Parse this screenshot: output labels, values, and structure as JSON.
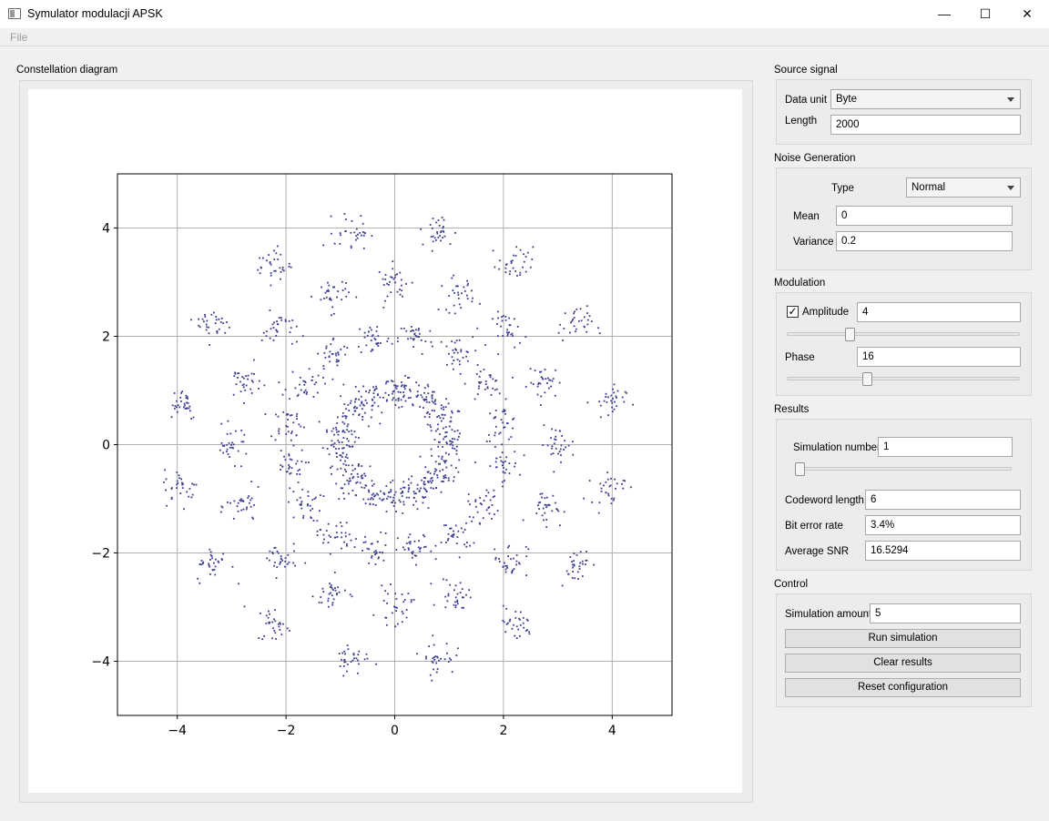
{
  "window": {
    "title": "Symulator modulacji APSK",
    "minimize": "—",
    "maximize": "☐",
    "close": "✕"
  },
  "menu": {
    "file": "File"
  },
  "plot_group": {
    "title": "Constellation diagram"
  },
  "source": {
    "title": "Source signal",
    "data_unit_label": "Data unit",
    "data_unit_value": "Byte",
    "length_label": "Length",
    "length_value": "2000"
  },
  "noise": {
    "title": "Noise Generation",
    "type_label": "Type",
    "type_value": "Normal",
    "mean_label": "Mean",
    "mean_value": "0",
    "variance_label": "Variance",
    "variance_value": "0.2"
  },
  "modulation": {
    "title": "Modulation",
    "amplitude_checked": true,
    "amplitude_label": "Amplitude",
    "amplitude_value": "4",
    "amplitude_slider_fraction": 0.26,
    "phase_label": "Phase",
    "phase_value": "16",
    "phase_slider_fraction": 0.34
  },
  "results": {
    "title": "Results",
    "simnum_label": "Simulation number",
    "simnum_value": "1",
    "simnum_slider_fraction": 0.0,
    "codeword_label": "Codeword length",
    "codeword_value": "6",
    "ber_label": "Bit error rate",
    "ber_value": "3.4%",
    "snr_label": "Average SNR",
    "snr_value": "16.5294"
  },
  "control": {
    "title": "Control",
    "amount_label": "Simulation amount",
    "amount_value": "5",
    "run_label": "Run simulation",
    "clear_label": "Clear results",
    "reset_label": "Reset configuration"
  },
  "chart_data": {
    "type": "scatter",
    "xlim": [
      -5.1,
      5.1
    ],
    "ylim": [
      -5.0,
      5.0
    ],
    "xticks": [
      -4,
      -2,
      0,
      2,
      4
    ],
    "yticks": [
      -4,
      -2,
      0,
      2,
      4
    ],
    "x_tick_labels": [
      "−4",
      "−2",
      "0",
      "2",
      "4"
    ],
    "y_tick_labels": [
      "−4",
      "−2",
      "0",
      "2",
      "4"
    ],
    "grid": true,
    "point_color": "#3b3b8f",
    "noise_std": 0.16,
    "points_per_symbol": 31,
    "rings": [
      {
        "radius": 1.0,
        "count": 16,
        "phase_deg": 0
      },
      {
        "radius": 2.0,
        "count": 16,
        "phase_deg": 11.25
      },
      {
        "radius": 3.0,
        "count": 16,
        "phase_deg": 0
      },
      {
        "radius": 4.0,
        "count": 16,
        "phase_deg": 11.25
      }
    ]
  }
}
